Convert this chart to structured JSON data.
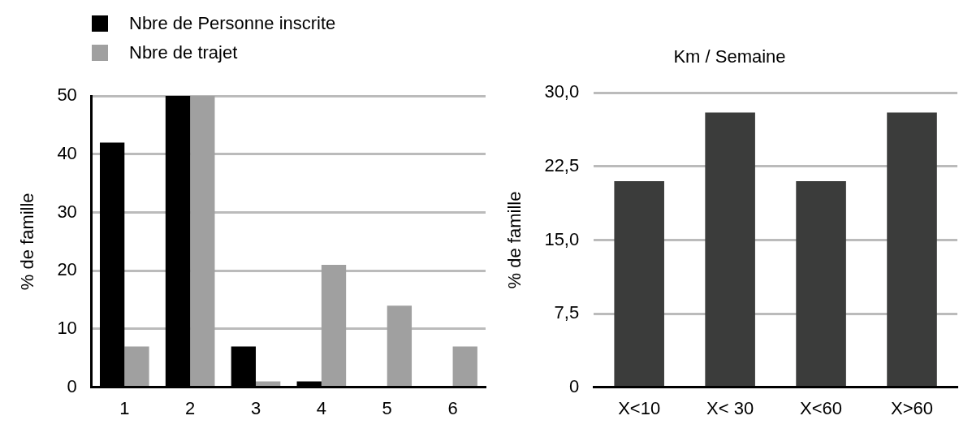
{
  "chart_data": [
    {
      "type": "bar",
      "categories": [
        "1",
        "2",
        "3",
        "4",
        "5",
        "6"
      ],
      "ylabel": "% de famille",
      "ylim": [
        0,
        50
      ],
      "yticks": [
        0,
        10,
        20,
        30,
        40,
        50
      ],
      "grid": "y",
      "legend": "top left",
      "series": [
        {
          "name": "Nbre de Personne inscrite",
          "color": "#000000",
          "values": [
            42,
            50,
            7,
            1,
            0,
            0
          ]
        },
        {
          "name": "Nbre de trajet",
          "color": "#a0a0a0",
          "values": [
            7,
            50,
            1,
            21,
            14,
            7
          ]
        }
      ]
    },
    {
      "type": "bar",
      "title": "Km / Semaine",
      "categories": [
        "X<10",
        "X< 30",
        "X<60",
        "X>60"
      ],
      "ylabel": "% de famille",
      "ylim": [
        0,
        30
      ],
      "yticks": [
        0,
        {
          "value": 7.5,
          "label": "7,5"
        },
        {
          "value": 15,
          "label": "15,0"
        },
        {
          "value": 22.5,
          "label": "22,5"
        },
        {
          "value": 30,
          "label": "30,0"
        }
      ],
      "grid": "y",
      "series": [
        {
          "color": "#3b3c3b",
          "values": [
            21,
            28,
            21,
            28
          ]
        }
      ]
    }
  ]
}
